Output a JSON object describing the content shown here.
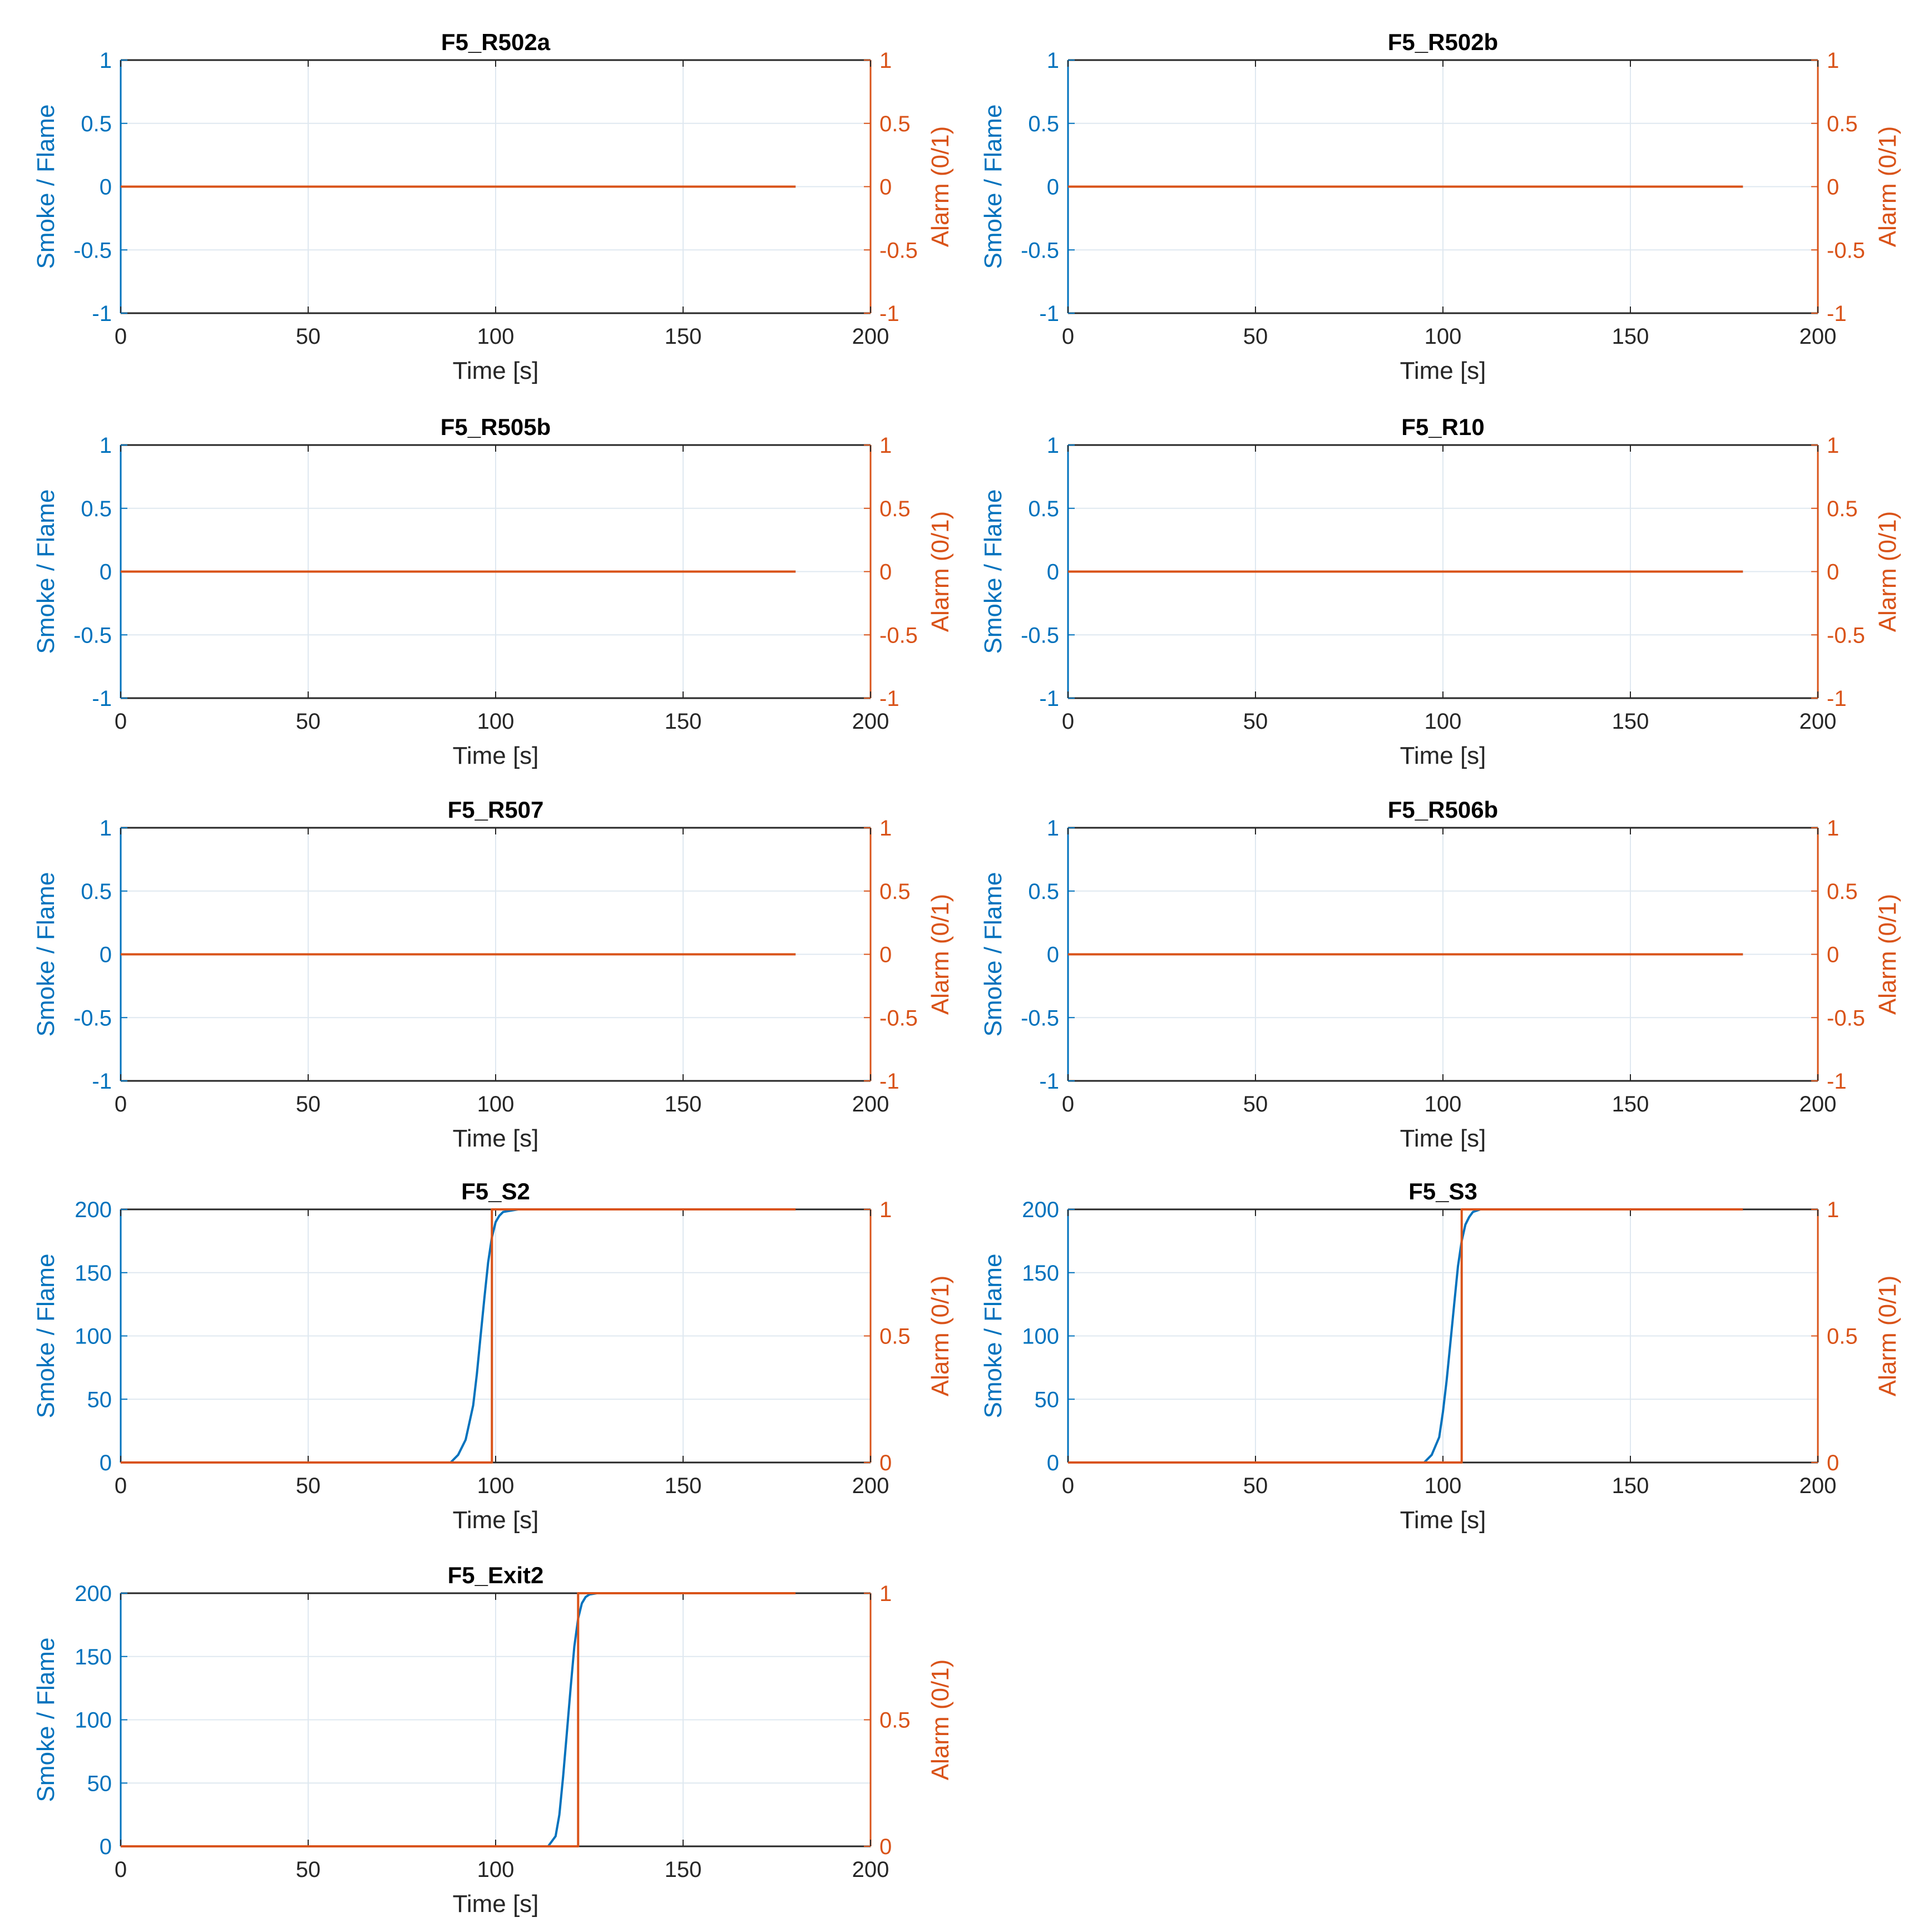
{
  "figure": {
    "background": "#ffffff",
    "colors": {
      "left_axis": "#0072BD",
      "right_axis": "#D95319",
      "smoke_line": "#0072BD",
      "alarm_line": "#D95319",
      "grid": "#dfe8f0",
      "frame": "#262626",
      "title": "#000000",
      "xlabel": "#262626"
    }
  },
  "chart_data": [
    {
      "type": "line",
      "title": "F5_R502a",
      "xlabel": "Time [s]",
      "ylabel": "Smoke / Flame",
      "y2label": "Alarm (0/1)",
      "xlim": [
        0,
        200
      ],
      "ylim": [
        -1,
        1
      ],
      "y2lim": [
        -1,
        1
      ],
      "xticks": [
        0,
        50,
        100,
        150,
        200
      ],
      "yticks": [
        -1,
        -0.5,
        0,
        0.5,
        1
      ],
      "y2ticks": [
        -1,
        -0.5,
        0,
        0.5,
        1
      ],
      "ytick_labels": [
        "-1",
        "-0.5",
        "0",
        "0.5",
        "1"
      ],
      "y2tick_labels": [
        "-1",
        "-0.5",
        "0",
        "0.5",
        "1"
      ],
      "grid": true,
      "series": [
        {
          "axis": "left",
          "x": [
            0,
            180
          ],
          "y": [
            0,
            0
          ]
        },
        {
          "axis": "right",
          "x": [
            0,
            180
          ],
          "y": [
            0,
            0
          ]
        }
      ]
    },
    {
      "type": "line",
      "title": "F5_R502b",
      "xlabel": "Time [s]",
      "ylabel": "Smoke / Flame",
      "y2label": "Alarm (0/1)",
      "xlim": [
        0,
        200
      ],
      "ylim": [
        -1,
        1
      ],
      "y2lim": [
        -1,
        1
      ],
      "xticks": [
        0,
        50,
        100,
        150,
        200
      ],
      "yticks": [
        -1,
        -0.5,
        0,
        0.5,
        1
      ],
      "y2ticks": [
        -1,
        -0.5,
        0,
        0.5,
        1
      ],
      "ytick_labels": [
        "-1",
        "-0.5",
        "0",
        "0.5",
        "1"
      ],
      "y2tick_labels": [
        "-1",
        "-0.5",
        "0",
        "0.5",
        "1"
      ],
      "grid": true,
      "series": [
        {
          "axis": "left",
          "x": [
            0,
            180
          ],
          "y": [
            0,
            0
          ]
        },
        {
          "axis": "right",
          "x": [
            0,
            180
          ],
          "y": [
            0,
            0
          ]
        }
      ]
    },
    {
      "type": "line",
      "title": "F5_R505b",
      "xlabel": "Time [s]",
      "ylabel": "Smoke / Flame",
      "y2label": "Alarm (0/1)",
      "xlim": [
        0,
        200
      ],
      "ylim": [
        -1,
        1
      ],
      "y2lim": [
        -1,
        1
      ],
      "xticks": [
        0,
        50,
        100,
        150,
        200
      ],
      "yticks": [
        -1,
        -0.5,
        0,
        0.5,
        1
      ],
      "y2ticks": [
        -1,
        -0.5,
        0,
        0.5,
        1
      ],
      "ytick_labels": [
        "-1",
        "-0.5",
        "0",
        "0.5",
        "1"
      ],
      "y2tick_labels": [
        "-1",
        "-0.5",
        "0",
        "0.5",
        "1"
      ],
      "grid": true,
      "series": [
        {
          "axis": "left",
          "x": [
            0,
            180
          ],
          "y": [
            0,
            0
          ]
        },
        {
          "axis": "right",
          "x": [
            0,
            180
          ],
          "y": [
            0,
            0
          ]
        }
      ]
    },
    {
      "type": "line",
      "title": "F5_R10",
      "xlabel": "Time [s]",
      "ylabel": "Smoke / Flame",
      "y2label": "Alarm (0/1)",
      "xlim": [
        0,
        200
      ],
      "ylim": [
        -1,
        1
      ],
      "y2lim": [
        -1,
        1
      ],
      "xticks": [
        0,
        50,
        100,
        150,
        200
      ],
      "yticks": [
        -1,
        -0.5,
        0,
        0.5,
        1
      ],
      "y2ticks": [
        -1,
        -0.5,
        0,
        0.5,
        1
      ],
      "ytick_labels": [
        "-1",
        "-0.5",
        "0",
        "0.5",
        "1"
      ],
      "y2tick_labels": [
        "-1",
        "-0.5",
        "0",
        "0.5",
        "1"
      ],
      "grid": true,
      "series": [
        {
          "axis": "left",
          "x": [
            0,
            180
          ],
          "y": [
            0,
            0
          ]
        },
        {
          "axis": "right",
          "x": [
            0,
            180
          ],
          "y": [
            0,
            0
          ]
        }
      ]
    },
    {
      "type": "line",
      "title": "F5_R507",
      "xlabel": "Time [s]",
      "ylabel": "Smoke / Flame",
      "y2label": "Alarm (0/1)",
      "xlim": [
        0,
        200
      ],
      "ylim": [
        -1,
        1
      ],
      "y2lim": [
        -1,
        1
      ],
      "xticks": [
        0,
        50,
        100,
        150,
        200
      ],
      "yticks": [
        -1,
        -0.5,
        0,
        0.5,
        1
      ],
      "y2ticks": [
        -1,
        -0.5,
        0,
        0.5,
        1
      ],
      "ytick_labels": [
        "-1",
        "-0.5",
        "0",
        "0.5",
        "1"
      ],
      "y2tick_labels": [
        "-1",
        "-0.5",
        "0",
        "0.5",
        "1"
      ],
      "grid": true,
      "series": [
        {
          "axis": "left",
          "x": [
            0,
            180
          ],
          "y": [
            0,
            0
          ]
        },
        {
          "axis": "right",
          "x": [
            0,
            180
          ],
          "y": [
            0,
            0
          ]
        }
      ]
    },
    {
      "type": "line",
      "title": "F5_R506b",
      "xlabel": "Time [s]",
      "ylabel": "Smoke / Flame",
      "y2label": "Alarm (0/1)",
      "xlim": [
        0,
        200
      ],
      "ylim": [
        -1,
        1
      ],
      "y2lim": [
        -1,
        1
      ],
      "xticks": [
        0,
        50,
        100,
        150,
        200
      ],
      "yticks": [
        -1,
        -0.5,
        0,
        0.5,
        1
      ],
      "y2ticks": [
        -1,
        -0.5,
        0,
        0.5,
        1
      ],
      "ytick_labels": [
        "-1",
        "-0.5",
        "0",
        "0.5",
        "1"
      ],
      "y2tick_labels": [
        "-1",
        "-0.5",
        "0",
        "0.5",
        "1"
      ],
      "grid": true,
      "series": [
        {
          "axis": "left",
          "x": [
            0,
            180
          ],
          "y": [
            0,
            0
          ]
        },
        {
          "axis": "right",
          "x": [
            0,
            180
          ],
          "y": [
            0,
            0
          ]
        }
      ]
    },
    {
      "type": "line",
      "title": "F5_S2",
      "xlabel": "Time [s]",
      "ylabel": "Smoke / Flame",
      "y2label": "Alarm (0/1)",
      "xlim": [
        0,
        200
      ],
      "ylim": [
        0,
        200
      ],
      "y2lim": [
        0,
        1
      ],
      "xticks": [
        0,
        50,
        100,
        150,
        200
      ],
      "yticks": [
        0,
        50,
        100,
        150,
        200
      ],
      "y2ticks": [
        0,
        0.5,
        1
      ],
      "ytick_labels": [
        "0",
        "50",
        "100",
        "150",
        "200"
      ],
      "y2tick_labels": [
        "0",
        "0.5",
        "1"
      ],
      "grid": true,
      "series": [
        {
          "axis": "left",
          "x": [
            0,
            88,
            90,
            92,
            94,
            95,
            96,
            97,
            98,
            99,
            100,
            101,
            102,
            104,
            106,
            110,
            180
          ],
          "y": [
            0,
            0,
            6,
            18,
            45,
            70,
            100,
            130,
            158,
            178,
            190,
            195,
            198,
            199,
            200,
            200,
            200
          ]
        },
        {
          "axis": "right",
          "x": [
            0,
            99,
            99,
            180
          ],
          "y": [
            0,
            0,
            1,
            1
          ]
        }
      ]
    },
    {
      "type": "line",
      "title": "F5_S3",
      "xlabel": "Time [s]",
      "ylabel": "Smoke / Flame",
      "y2label": "Alarm (0/1)",
      "xlim": [
        0,
        200
      ],
      "ylim": [
        0,
        200
      ],
      "y2lim": [
        0,
        1
      ],
      "xticks": [
        0,
        50,
        100,
        150,
        200
      ],
      "yticks": [
        0,
        50,
        100,
        150,
        200
      ],
      "y2ticks": [
        0,
        0.5,
        1
      ],
      "ytick_labels": [
        "0",
        "50",
        "100",
        "150",
        "200"
      ],
      "y2tick_labels": [
        "0",
        "0.5",
        "1"
      ],
      "grid": true,
      "series": [
        {
          "axis": "left",
          "x": [
            0,
            95,
            97,
            99,
            100,
            101,
            102,
            103,
            104,
            105,
            106,
            107,
            108,
            110,
            113,
            180
          ],
          "y": [
            0,
            0,
            6,
            20,
            40,
            65,
            95,
            125,
            155,
            175,
            188,
            194,
            198,
            200,
            200,
            200
          ]
        },
        {
          "axis": "right",
          "x": [
            0,
            105,
            105,
            180
          ],
          "y": [
            0,
            0,
            1,
            1
          ]
        }
      ]
    },
    {
      "type": "line",
      "title": "F5_Exit2",
      "xlabel": "Time [s]",
      "ylabel": "Smoke / Flame",
      "y2label": "Alarm (0/1)",
      "xlim": [
        0,
        200
      ],
      "ylim": [
        0,
        200
      ],
      "y2lim": [
        0,
        1
      ],
      "xticks": [
        0,
        50,
        100,
        150,
        200
      ],
      "yticks": [
        0,
        50,
        100,
        150,
        200
      ],
      "y2ticks": [
        0,
        0.5,
        1
      ],
      "ytick_labels": [
        "0",
        "50",
        "100",
        "150",
        "200"
      ],
      "y2tick_labels": [
        "0",
        "0.5",
        "1"
      ],
      "grid": true,
      "series": [
        {
          "axis": "left",
          "x": [
            0,
            114,
            116,
            117,
            118,
            119,
            120,
            121,
            122,
            123,
            124,
            125,
            127,
            130,
            180
          ],
          "y": [
            0,
            0,
            8,
            25,
            55,
            90,
            125,
            158,
            180,
            192,
            197,
            199,
            200,
            200,
            200
          ]
        },
        {
          "axis": "right",
          "x": [
            0,
            122,
            122,
            180
          ],
          "y": [
            0,
            0,
            1,
            1
          ]
        }
      ]
    }
  ]
}
